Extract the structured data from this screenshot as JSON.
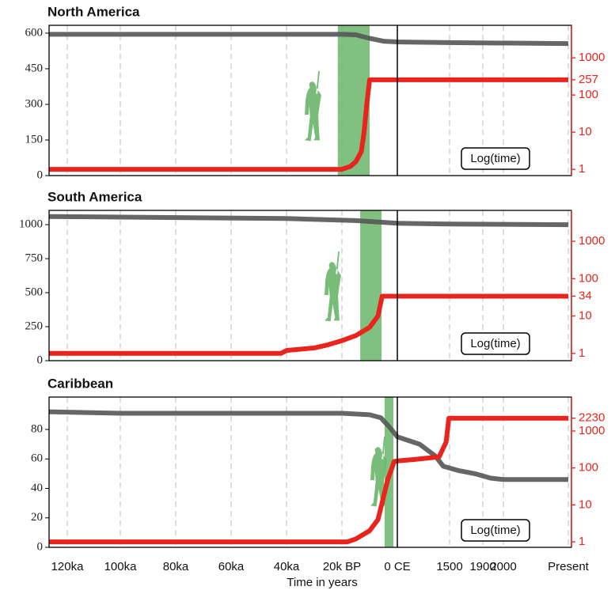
{
  "chart_data": [
    {
      "type": "line",
      "title": "North America",
      "ylim": [
        0,
        633
      ],
      "yticks": [
        0,
        150,
        300,
        450,
        600
      ],
      "y2lim": [
        0.68,
        7500
      ],
      "y2scale": "log",
      "y2ticks": [
        1,
        10,
        100,
        257,
        1000
      ],
      "band": [
        -21500,
        -10000
      ],
      "band_color": "#6ab56a",
      "vline": 0,
      "annotation": "Log(time)",
      "series": [
        {
          "color": "#555555",
          "x": [
            -127000,
            -20000,
            -15000,
            -10000,
            -5000,
            0,
            1500,
            2020
          ],
          "values": [
            595,
            595,
            593,
            578,
            566,
            563,
            560,
            556
          ]
        },
        {
          "color": "#e8241c",
          "axis": "y2",
          "x": [
            -127000,
            -20000,
            -17000,
            -15000,
            -13000,
            -12000,
            -11000,
            -10000,
            2020
          ],
          "values": [
            1,
            1,
            1.2,
            1.6,
            3,
            10,
            60,
            257,
            257
          ]
        }
      ]
    },
    {
      "type": "line",
      "title": "South America",
      "ylim": [
        0,
        1105
      ],
      "yticks": [
        0,
        250,
        500,
        750,
        1000
      ],
      "y2lim": [
        0.64,
        6700
      ],
      "y2scale": "log",
      "y2ticks": [
        1,
        10,
        34,
        100,
        1000
      ],
      "band": [
        -13400,
        -5700
      ],
      "band_color": "#6ab56a",
      "vline": 0,
      "annotation": "Log(time)",
      "series": [
        {
          "color": "#555555",
          "x": [
            -127000,
            -40000,
            -15000,
            0,
            1500,
            2020
          ],
          "values": [
            1060,
            1045,
            1030,
            1010,
            1005,
            1000
          ]
        },
        {
          "color": "#e8241c",
          "axis": "y2",
          "x": [
            -127000,
            -42000,
            -40000,
            -30000,
            -25000,
            -20000,
            -15000,
            -10000,
            -7000,
            -5500,
            2020
          ],
          "values": [
            1,
            1,
            1.2,
            1.4,
            1.7,
            2.2,
            3,
            5,
            10,
            34,
            34
          ]
        }
      ]
    },
    {
      "type": "line",
      "title": "Caribbean",
      "ylim": [
        0,
        102
      ],
      "yticks": [
        0,
        20,
        40,
        60,
        80
      ],
      "y2lim": [
        0.71,
        8300
      ],
      "y2scale": "log",
      "y2ticks": [
        1,
        10,
        100,
        1000,
        2230
      ],
      "band": [
        -4600,
        -1400
      ],
      "band_color": "#6ab56a",
      "vline": 0,
      "annotation": "Log(time)",
      "xlabel": "Time in years",
      "xlim": [
        -127000,
        2021
      ],
      "xticks": [
        {
          "value": -120000,
          "label": "120ka"
        },
        {
          "value": -100000,
          "label": "100ka"
        },
        {
          "value": -80000,
          "label": "80ka"
        },
        {
          "value": -60000,
          "label": "60ka"
        },
        {
          "value": -40000,
          "label": "40ka"
        },
        {
          "value": -20000,
          "label": "20k BP"
        },
        {
          "value": 0,
          "label": "0 CE"
        },
        1500,
        1900,
        2000,
        {
          "value": 2020,
          "label": "Present"
        }
      ],
      "series": [
        {
          "color": "#555555",
          "x": [
            -127000,
            -100000,
            -20000,
            -10000,
            -6000,
            -3000,
            0,
            640,
            1090,
            1320,
            1614,
            1805,
            1938,
            2000,
            2020
          ],
          "values": [
            92,
            91,
            91,
            90,
            88,
            82,
            75,
            70,
            62,
            55,
            52,
            50,
            47,
            46,
            46
          ]
        },
        {
          "color": "#e8241c",
          "axis": "y2",
          "x": [
            -127000,
            -18000,
            -15000,
            -10000,
            -7000,
            -5700,
            -3400,
            -1100,
            0,
            500,
            1200,
            1400,
            1480,
            2020
          ],
          "values": [
            1,
            1,
            1.2,
            2,
            4,
            10,
            50,
            150,
            155,
            170,
            200,
            500,
            2230,
            2230
          ]
        }
      ]
    }
  ]
}
